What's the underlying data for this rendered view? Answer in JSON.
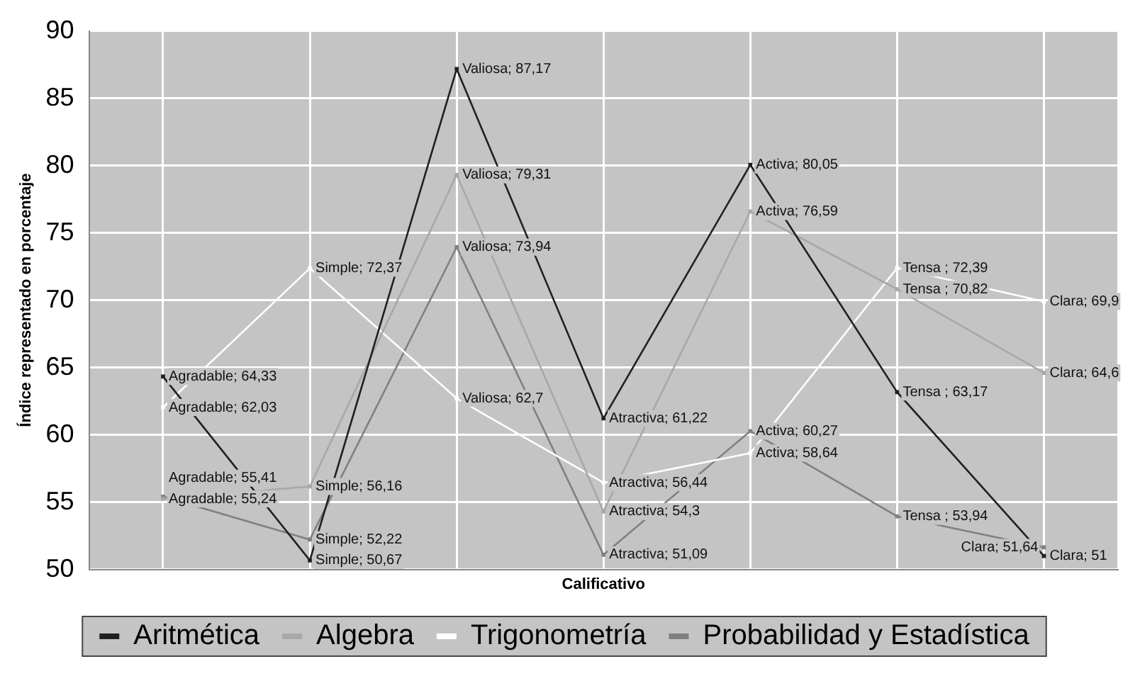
{
  "chart_data": {
    "type": "line",
    "xlabel": "Calificativo",
    "ylabel": "Índice representado en porcentaje",
    "categories": [
      null,
      null,
      null,
      null,
      null,
      null,
      null
    ],
    "tick_labels": "y",
    "ylim": [
      50,
      90
    ],
    "yticks": [
      50,
      55,
      60,
      65,
      70,
      75,
      80,
      85,
      90
    ],
    "grid": true,
    "legend": "bottom",
    "marker": "square",
    "line_style": "solid",
    "series": [
      {
        "name": "Aritmética",
        "color": "#202020",
        "values": [
          64.33,
          50.67,
          87.17,
          61.22,
          80.05,
          63.17,
          51
        ],
        "value_labels": [
          "Agradable; 64,33",
          "Simple; 50,67",
          "Valiosa; 87,17",
          "Atractiva; 61,22",
          "Activa; 80,05",
          "Tensa ; 63,17",
          "Clara; 51"
        ]
      },
      {
        "name": "Algebra",
        "color": "#a8a8a8",
        "values": [
          55.24,
          56.16,
          79.31,
          54.3,
          76.59,
          70.82,
          64.6
        ],
        "value_labels": [
          "Agradable; 55,24",
          "Simple; 56,16",
          "Valiosa; 79,31",
          "Atractiva; 54,3",
          "Activa; 76,59",
          "Tensa ; 70,82",
          "Clara; 64,6"
        ]
      },
      {
        "name": "Trigonometría",
        "color": "#ffffff",
        "values": [
          62.03,
          72.37,
          62.7,
          56.44,
          58.64,
          72.39,
          69.9
        ],
        "value_labels": [
          "Agradable; 62,03",
          "Simple; 72,37",
          "Valiosa; 62,7",
          "Atractiva; 56,44",
          "Activa; 58,64",
          "Tensa ; 72,39",
          "Clara; 69,9"
        ]
      },
      {
        "name": "Probabilidad y Estadística",
        "color": "#808080",
        "values": [
          55.41,
          52.22,
          73.94,
          51.09,
          60.27,
          53.94,
          51.64
        ],
        "value_labels": [
          "Agradable; 55,41",
          "Simple; 52,22",
          "Valiosa; 73,94",
          "Atractiva; 51,09",
          "Activa; 60,27",
          "Tensa ; 53,94",
          "Clara; 51,64"
        ]
      }
    ]
  }
}
